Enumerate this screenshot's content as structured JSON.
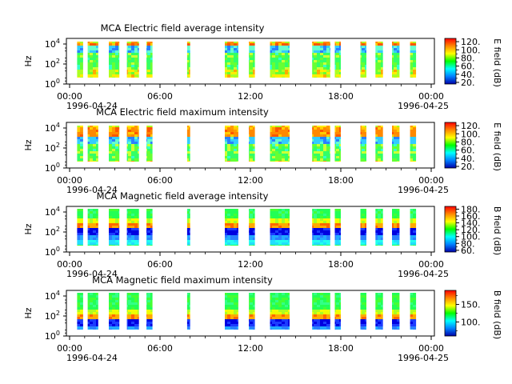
{
  "chart_data": [
    {
      "type": "heatmap",
      "title": "MCA  Electric field average intensity",
      "ylabel": "Hz",
      "y_scale": "log",
      "y_ticks": [
        "10^0",
        "10^2",
        "10^4"
      ],
      "x_ticks": [
        "00:00",
        "06:00",
        "12:00",
        "18:00",
        "00:00"
      ],
      "x_date_start": "1996-04-24",
      "x_date_end": "1996-04-25",
      "colorbar_label": "E field (dB)",
      "colorbar_ticks": [
        20,
        40,
        60,
        80,
        100,
        120
      ],
      "colorbar_tick_labels": [
        "20.",
        "40.",
        "60.",
        "80.",
        "100.",
        "120."
      ],
      "colorbar_range": [
        16,
        128
      ],
      "colorscale": "rainbow",
      "data_intervals_hours": [
        [
          0.5,
          0.9
        ],
        [
          1.2,
          1.9
        ],
        [
          2.6,
          3.3
        ],
        [
          3.8,
          4.6
        ],
        [
          5.1,
          5.5
        ],
        [
          7.8,
          8.0
        ],
        [
          10.3,
          11.2
        ],
        [
          11.9,
          12.3
        ],
        [
          13.3,
          14.6
        ],
        [
          16.1,
          17.3
        ],
        [
          17.6,
          18.0
        ],
        [
          19.3,
          19.7
        ],
        [
          20.3,
          20.8
        ],
        [
          21.4,
          21.9
        ],
        [
          22.6,
          23.0
        ]
      ]
    },
    {
      "type": "heatmap",
      "title": "MCA  Electric field maximum intensity",
      "ylabel": "Hz",
      "y_scale": "log",
      "y_ticks": [
        "10^0",
        "10^2",
        "10^4"
      ],
      "x_ticks": [
        "00:00",
        "06:00",
        "12:00",
        "18:00",
        "00:00"
      ],
      "x_date_start": "1996-04-24",
      "x_date_end": "1996-04-25",
      "colorbar_label": "E field (dB)",
      "colorbar_ticks": [
        20,
        40,
        60,
        80,
        100,
        120
      ],
      "colorbar_tick_labels": [
        "20.",
        "40.",
        "60.",
        "80.",
        "100.",
        "120."
      ],
      "colorbar_range": [
        16,
        128
      ],
      "colorscale": "rainbow",
      "data_intervals_hours": [
        [
          0.5,
          0.9
        ],
        [
          1.2,
          1.9
        ],
        [
          2.6,
          3.3
        ],
        [
          3.8,
          4.6
        ],
        [
          5.1,
          5.5
        ],
        [
          7.8,
          8.0
        ],
        [
          10.3,
          11.2
        ],
        [
          11.9,
          12.3
        ],
        [
          13.3,
          14.6
        ],
        [
          16.1,
          17.3
        ],
        [
          17.6,
          18.0
        ],
        [
          19.3,
          19.7
        ],
        [
          20.3,
          20.8
        ],
        [
          21.4,
          21.9
        ],
        [
          22.6,
          23.0
        ]
      ]
    },
    {
      "type": "heatmap",
      "title": "MCA  Magnetic field average intensity",
      "ylabel": "Hz",
      "y_scale": "log",
      "y_ticks": [
        "10^0",
        "10^2",
        "10^4"
      ],
      "x_ticks": [
        "00:00",
        "06:00",
        "12:00",
        "18:00",
        "00:00"
      ],
      "x_date_start": "1996-04-24",
      "x_date_end": "1996-04-25",
      "colorbar_label": "B field (dB)",
      "colorbar_ticks": [
        60,
        80,
        100,
        120,
        140,
        160,
        180
      ],
      "colorbar_tick_labels": [
        "60.",
        "80.",
        "100.",
        "120.",
        "140.",
        "160.",
        "180."
      ],
      "colorbar_range": [
        55,
        188
      ],
      "colorscale": "rainbow",
      "data_intervals_hours": [
        [
          0.5,
          0.9
        ],
        [
          1.2,
          1.9
        ],
        [
          2.6,
          3.3
        ],
        [
          3.8,
          4.6
        ],
        [
          5.1,
          5.5
        ],
        [
          7.8,
          8.0
        ],
        [
          10.3,
          11.2
        ],
        [
          11.9,
          12.3
        ],
        [
          13.3,
          14.6
        ],
        [
          16.1,
          17.3
        ],
        [
          17.6,
          18.0
        ],
        [
          19.3,
          19.7
        ],
        [
          20.3,
          20.8
        ],
        [
          21.4,
          21.9
        ],
        [
          22.6,
          23.0
        ]
      ]
    },
    {
      "type": "heatmap",
      "title": "MCA  Magnetic field maximum intensity",
      "ylabel": "Hz",
      "y_scale": "log",
      "y_ticks": [
        "10^0",
        "10^2",
        "10^4"
      ],
      "x_ticks": [
        "00:00",
        "06:00",
        "12:00",
        "18:00",
        "00:00"
      ],
      "x_date_start": "1996-04-24",
      "x_date_end": "1996-04-25",
      "colorbar_label": "B field (dB)",
      "colorbar_ticks": [
        100,
        150
      ],
      "colorbar_tick_labels": [
        "100.",
        "150."
      ],
      "colorbar_range": [
        60,
        190
      ],
      "colorscale": "rainbow",
      "data_intervals_hours": [
        [
          0.5,
          0.9
        ],
        [
          1.2,
          1.9
        ],
        [
          2.6,
          3.3
        ],
        [
          3.8,
          4.6
        ],
        [
          5.1,
          5.5
        ],
        [
          7.8,
          8.0
        ],
        [
          10.3,
          11.2
        ],
        [
          11.9,
          12.3
        ],
        [
          13.3,
          14.6
        ],
        [
          16.1,
          17.3
        ],
        [
          17.6,
          18.0
        ],
        [
          19.3,
          19.7
        ],
        [
          20.3,
          20.8
        ],
        [
          21.4,
          21.9
        ],
        [
          22.6,
          23.0
        ]
      ]
    }
  ]
}
